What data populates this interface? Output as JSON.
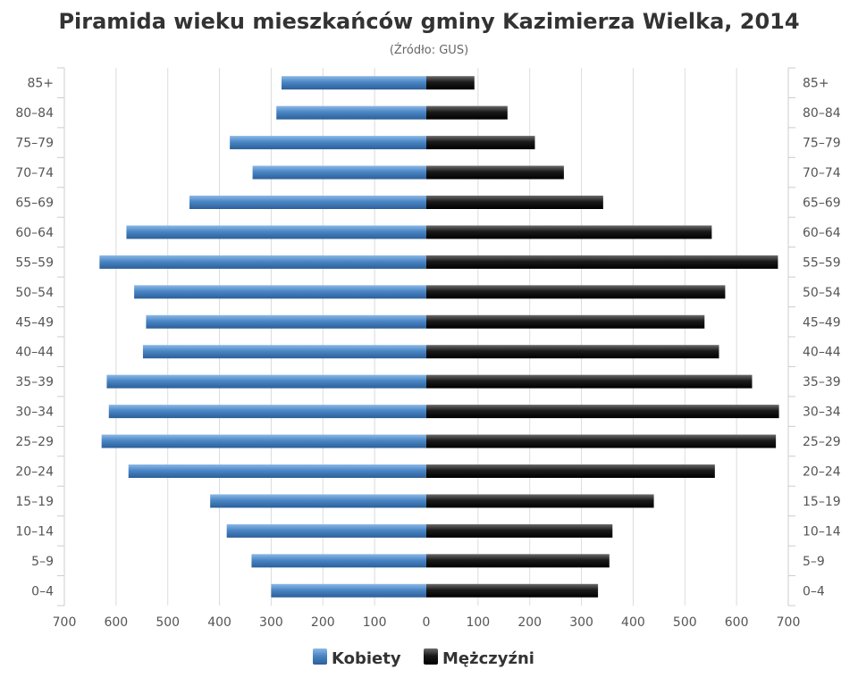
{
  "chart_data": {
    "type": "bar",
    "orientation": "horizontal",
    "layout": "population-pyramid",
    "title": "Piramida wieku mieszkańców gminy Kazimierza Wielka, 2014",
    "subtitle": "(Źródło: GUS)",
    "categories": [
      "85+",
      "80–84",
      "75–79",
      "70–74",
      "65–69",
      "60–64",
      "55–59",
      "50–54",
      "45–49",
      "40–44",
      "35–39",
      "30–34",
      "25–29",
      "20–24",
      "15–19",
      "10–14",
      "5–9",
      "0–4"
    ],
    "series": [
      {
        "name": "Kobiety",
        "side": "left",
        "color": "#4a86c5",
        "values": [
          280,
          290,
          380,
          336,
          458,
          580,
          632,
          565,
          542,
          548,
          618,
          614,
          628,
          576,
          418,
          386,
          338,
          300
        ]
      },
      {
        "name": "Mężczyźni",
        "side": "right",
        "color": "#1a1a1a",
        "values": [
          93,
          157,
          210,
          266,
          342,
          552,
          680,
          578,
          538,
          566,
          630,
          682,
          676,
          558,
          440,
          360,
          354,
          332
        ]
      }
    ],
    "x_ticks": [
      "700",
      "600",
      "500",
      "400",
      "300",
      "200",
      "100",
      "0",
      "100",
      "200",
      "300",
      "400",
      "500",
      "600",
      "700"
    ],
    "xlim": [
      -700,
      700
    ],
    "grid": "vertical",
    "legend_position": "bottom-center"
  }
}
